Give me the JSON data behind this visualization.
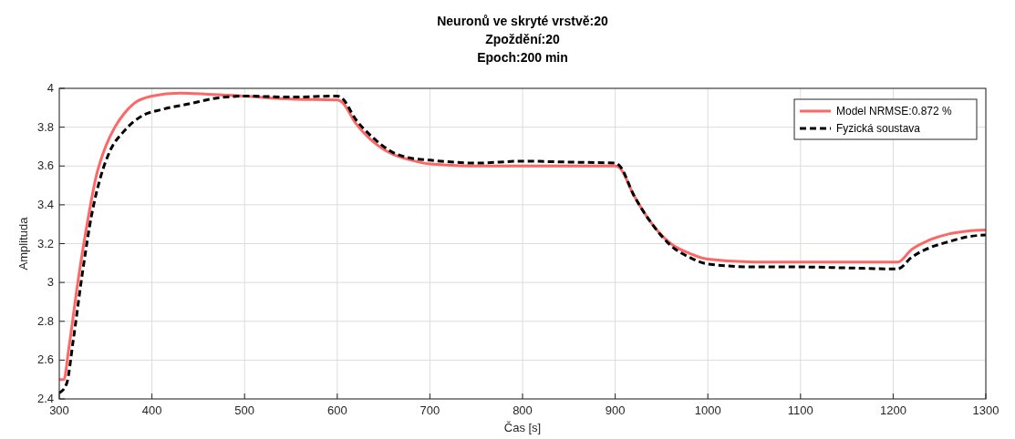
{
  "chart_data": {
    "type": "line",
    "title": "Neuronů ve skryté vrstvě:20\nZpoždění:20\nEpoch:200 min",
    "xlabel": "Čas [s]",
    "ylabel": "Amplituda",
    "xlim": [
      300,
      1300
    ],
    "ylim": [
      2.4,
      4
    ],
    "xticks": [
      300,
      400,
      500,
      600,
      700,
      800,
      900,
      1000,
      1100,
      1200,
      1300
    ],
    "yticks": [
      2.4,
      2.6,
      2.8,
      3,
      3.2,
      3.4,
      3.6,
      3.8,
      4
    ],
    "grid": true,
    "legend": "top right",
    "series": [
      {
        "name": "Model NRMSE:0.872 %",
        "color": "#ff6666",
        "line_style": "solid",
        "x": [
          300,
          305,
          310,
          320,
          330,
          340,
          350,
          360,
          370,
          380,
          400,
          430,
          460,
          500,
          550,
          600,
          605,
          620,
          640,
          660,
          680,
          700,
          750,
          800,
          900,
          905,
          920,
          940,
          960,
          980,
          1000,
          1050,
          1100,
          1205,
          1220,
          1240,
          1260,
          1280,
          1300
        ],
        "values": [
          2.5,
          2.5,
          2.65,
          3.0,
          3.3,
          3.55,
          3.7,
          3.8,
          3.87,
          3.92,
          3.96,
          3.975,
          3.97,
          3.96,
          3.945,
          3.94,
          3.93,
          3.82,
          3.72,
          3.66,
          3.63,
          3.61,
          3.6,
          3.6,
          3.6,
          3.59,
          3.45,
          3.3,
          3.2,
          3.15,
          3.12,
          3.105,
          3.105,
          3.105,
          3.17,
          3.22,
          3.25,
          3.265,
          3.27
        ]
      },
      {
        "name": "Fyzická soustava",
        "color": "#000000",
        "line_style": "dashed",
        "x": [
          300,
          308,
          315,
          325,
          335,
          345,
          355,
          370,
          390,
          410,
          440,
          470,
          500,
          550,
          600,
          605,
          620,
          640,
          660,
          680,
          700,
          750,
          800,
          850,
          900,
          905,
          920,
          940,
          960,
          980,
          1000,
          1050,
          1100,
          1150,
          1200,
          1205,
          1220,
          1240,
          1260,
          1280,
          1300
        ],
        "values": [
          2.43,
          2.48,
          2.7,
          3.05,
          3.35,
          3.55,
          3.68,
          3.78,
          3.86,
          3.89,
          3.92,
          3.95,
          3.96,
          3.955,
          3.96,
          3.95,
          3.84,
          3.74,
          3.67,
          3.64,
          3.63,
          3.615,
          3.625,
          3.62,
          3.615,
          3.6,
          3.45,
          3.3,
          3.19,
          3.13,
          3.095,
          3.08,
          3.08,
          3.075,
          3.07,
          3.07,
          3.13,
          3.18,
          3.21,
          3.235,
          3.245
        ]
      }
    ]
  }
}
